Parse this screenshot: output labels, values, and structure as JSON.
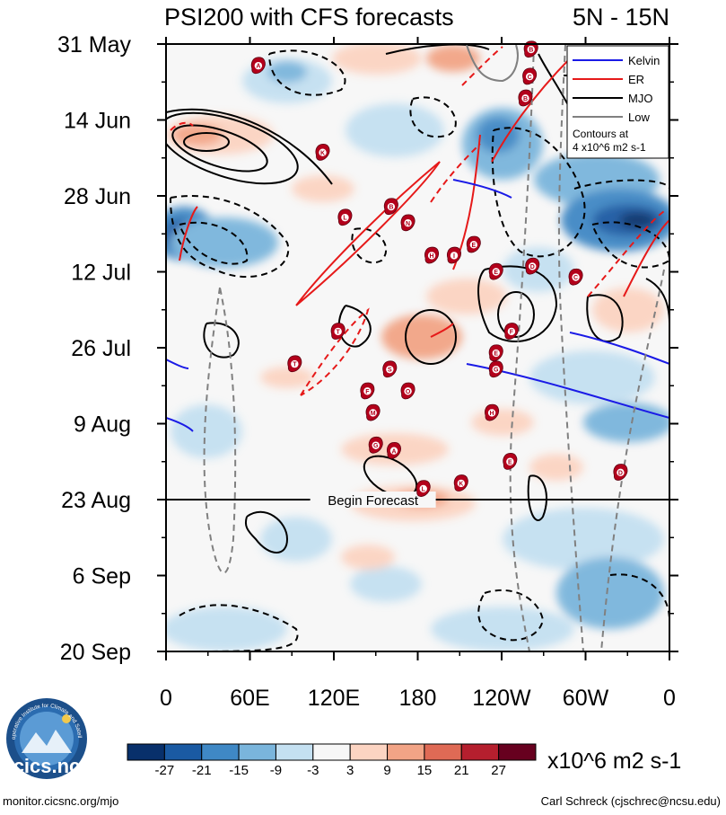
{
  "chart_data": {
    "type": "heatmap",
    "title": "PSI200 with CFS forecasts",
    "region": "5N - 15N",
    "x_axis": {
      "tick_labels": [
        "0",
        "60E",
        "120E",
        "180",
        "120W",
        "60W",
        "0"
      ],
      "tick_lon_east": [
        0,
        60,
        120,
        180,
        240,
        300,
        360
      ],
      "range": [
        0,
        360
      ]
    },
    "y_axis": {
      "tick_labels": [
        "31 May",
        "14 Jun",
        "28 Jun",
        "12 Jul",
        "26 Jul",
        "9 Aug",
        "23 Aug",
        "6 Sep",
        "20 Sep"
      ],
      "tick_day": [
        0,
        14,
        28,
        42,
        56,
        70,
        84,
        98,
        112
      ],
      "range_days": [
        0,
        112
      ]
    },
    "forecast_start_day": 84,
    "forecast_label": "Begin Forecast",
    "colorbar": {
      "labels": [
        "-27",
        "-21",
        "-15",
        "-9",
        "-3",
        "3",
        "9",
        "15",
        "21",
        "27"
      ],
      "colors": [
        "#08306b",
        "#1a5aa3",
        "#3f88c5",
        "#7ab5dc",
        "#c4e0f1",
        "#f7f7f7",
        "#fcd4c2",
        "#f2a486",
        "#df6a55",
        "#b51f2e",
        "#67001f"
      ],
      "units": "x10^6 m2 s-1"
    },
    "legend": {
      "entries": [
        {
          "name": "Kelvin",
          "color": "#1a1ae6"
        },
        {
          "name": "ER",
          "color": "#e61919"
        },
        {
          "name": "MJO",
          "color": "#000000"
        },
        {
          "name": "Low",
          "color": "#808080"
        }
      ],
      "note_line1": "Contours at",
      "note_line2": "4 x10^6 m2 s-1",
      "placement": "top-right"
    },
    "storms": [
      {
        "lon": 66,
        "day": 4,
        "letter": "A"
      },
      {
        "lon": 112,
        "day": 20,
        "letter": "K"
      },
      {
        "lon": 128,
        "day": 32,
        "letter": "L"
      },
      {
        "lon": 161,
        "day": 30,
        "letter": "B"
      },
      {
        "lon": 173,
        "day": 33,
        "letter": "N"
      },
      {
        "lon": 190,
        "day": 39,
        "letter": "H"
      },
      {
        "lon": 206,
        "day": 39,
        "letter": "I"
      },
      {
        "lon": 220,
        "day": 37,
        "letter": "E"
      },
      {
        "lon": 236,
        "day": 42,
        "letter": "E"
      },
      {
        "lon": 262,
        "day": 41,
        "letter": "D"
      },
      {
        "lon": 293,
        "day": 43,
        "letter": "C"
      },
      {
        "lon": 257,
        "day": 10,
        "letter": "B"
      },
      {
        "lon": 261,
        "day": 1,
        "letter": "B"
      },
      {
        "lon": 260,
        "day": 6,
        "letter": "C"
      },
      {
        "lon": 123,
        "day": 53,
        "letter": "T"
      },
      {
        "lon": 92,
        "day": 59,
        "letter": "T"
      },
      {
        "lon": 160,
        "day": 60,
        "letter": "S"
      },
      {
        "lon": 144,
        "day": 64,
        "letter": "F"
      },
      {
        "lon": 173,
        "day": 64,
        "letter": "O"
      },
      {
        "lon": 148,
        "day": 68,
        "letter": "M"
      },
      {
        "lon": 236,
        "day": 57,
        "letter": "E"
      },
      {
        "lon": 236,
        "day": 60,
        "letter": "G"
      },
      {
        "lon": 233,
        "day": 68,
        "letter": "H"
      },
      {
        "lon": 247,
        "day": 53,
        "letter": "F"
      },
      {
        "lon": 150,
        "day": 74,
        "letter": "G"
      },
      {
        "lon": 163,
        "day": 75,
        "letter": "A"
      },
      {
        "lon": 246,
        "day": 77,
        "letter": "E"
      },
      {
        "lon": 325,
        "day": 79,
        "letter": "D"
      },
      {
        "lon": 184,
        "day": 82,
        "letter": "L"
      },
      {
        "lon": 211,
        "day": 81,
        "letter": "K"
      }
    ]
  },
  "footer": {
    "logo_text": "cics.nc",
    "logo_ring_text": "Cooperative Institute for Climate and Satellites",
    "left": "monitor.cicsnc.org/mjo",
    "right": "Carl Schreck (cjschrec@ncsu.edu)"
  }
}
